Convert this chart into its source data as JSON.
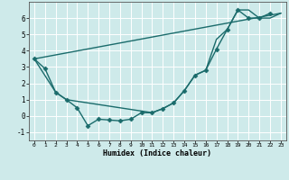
{
  "xlabel": "Humidex (Indice chaleur)",
  "bg_color": "#ceeaea",
  "line_color": "#1a6b6b",
  "marker": "D",
  "markersize": 2.5,
  "linewidth": 1.0,
  "xlim": [
    -0.5,
    23.5
  ],
  "ylim": [
    -1.5,
    7.0
  ],
  "xticks": [
    0,
    1,
    2,
    3,
    4,
    5,
    6,
    7,
    8,
    9,
    10,
    11,
    12,
    13,
    14,
    15,
    16,
    17,
    18,
    19,
    20,
    21,
    22,
    23
  ],
  "yticks": [
    -1,
    0,
    1,
    2,
    3,
    4,
    5,
    6
  ],
  "curve1_x": [
    0,
    1,
    2,
    3,
    4,
    5,
    6,
    7,
    8,
    9,
    10,
    11,
    12,
    13,
    14,
    15,
    16,
    17,
    18,
    19,
    20,
    21,
    22
  ],
  "curve1_y": [
    3.5,
    2.9,
    1.45,
    1.0,
    0.5,
    -0.6,
    -0.2,
    -0.25,
    -0.3,
    -0.2,
    0.2,
    0.2,
    0.45,
    0.8,
    1.55,
    2.5,
    2.8,
    4.1,
    5.3,
    6.5,
    6.0,
    6.0,
    6.3
  ],
  "curve2_x": [
    0,
    23
  ],
  "curve2_y": [
    3.5,
    6.3
  ],
  "curve3_x": [
    0,
    2,
    3,
    11,
    12,
    13,
    14,
    15,
    16,
    17,
    18,
    19,
    20,
    21,
    22,
    23
  ],
  "curve3_y": [
    3.5,
    1.45,
    1.0,
    0.2,
    0.45,
    0.8,
    1.55,
    2.5,
    2.8,
    4.7,
    5.3,
    6.5,
    6.5,
    6.0,
    6.0,
    6.3
  ]
}
